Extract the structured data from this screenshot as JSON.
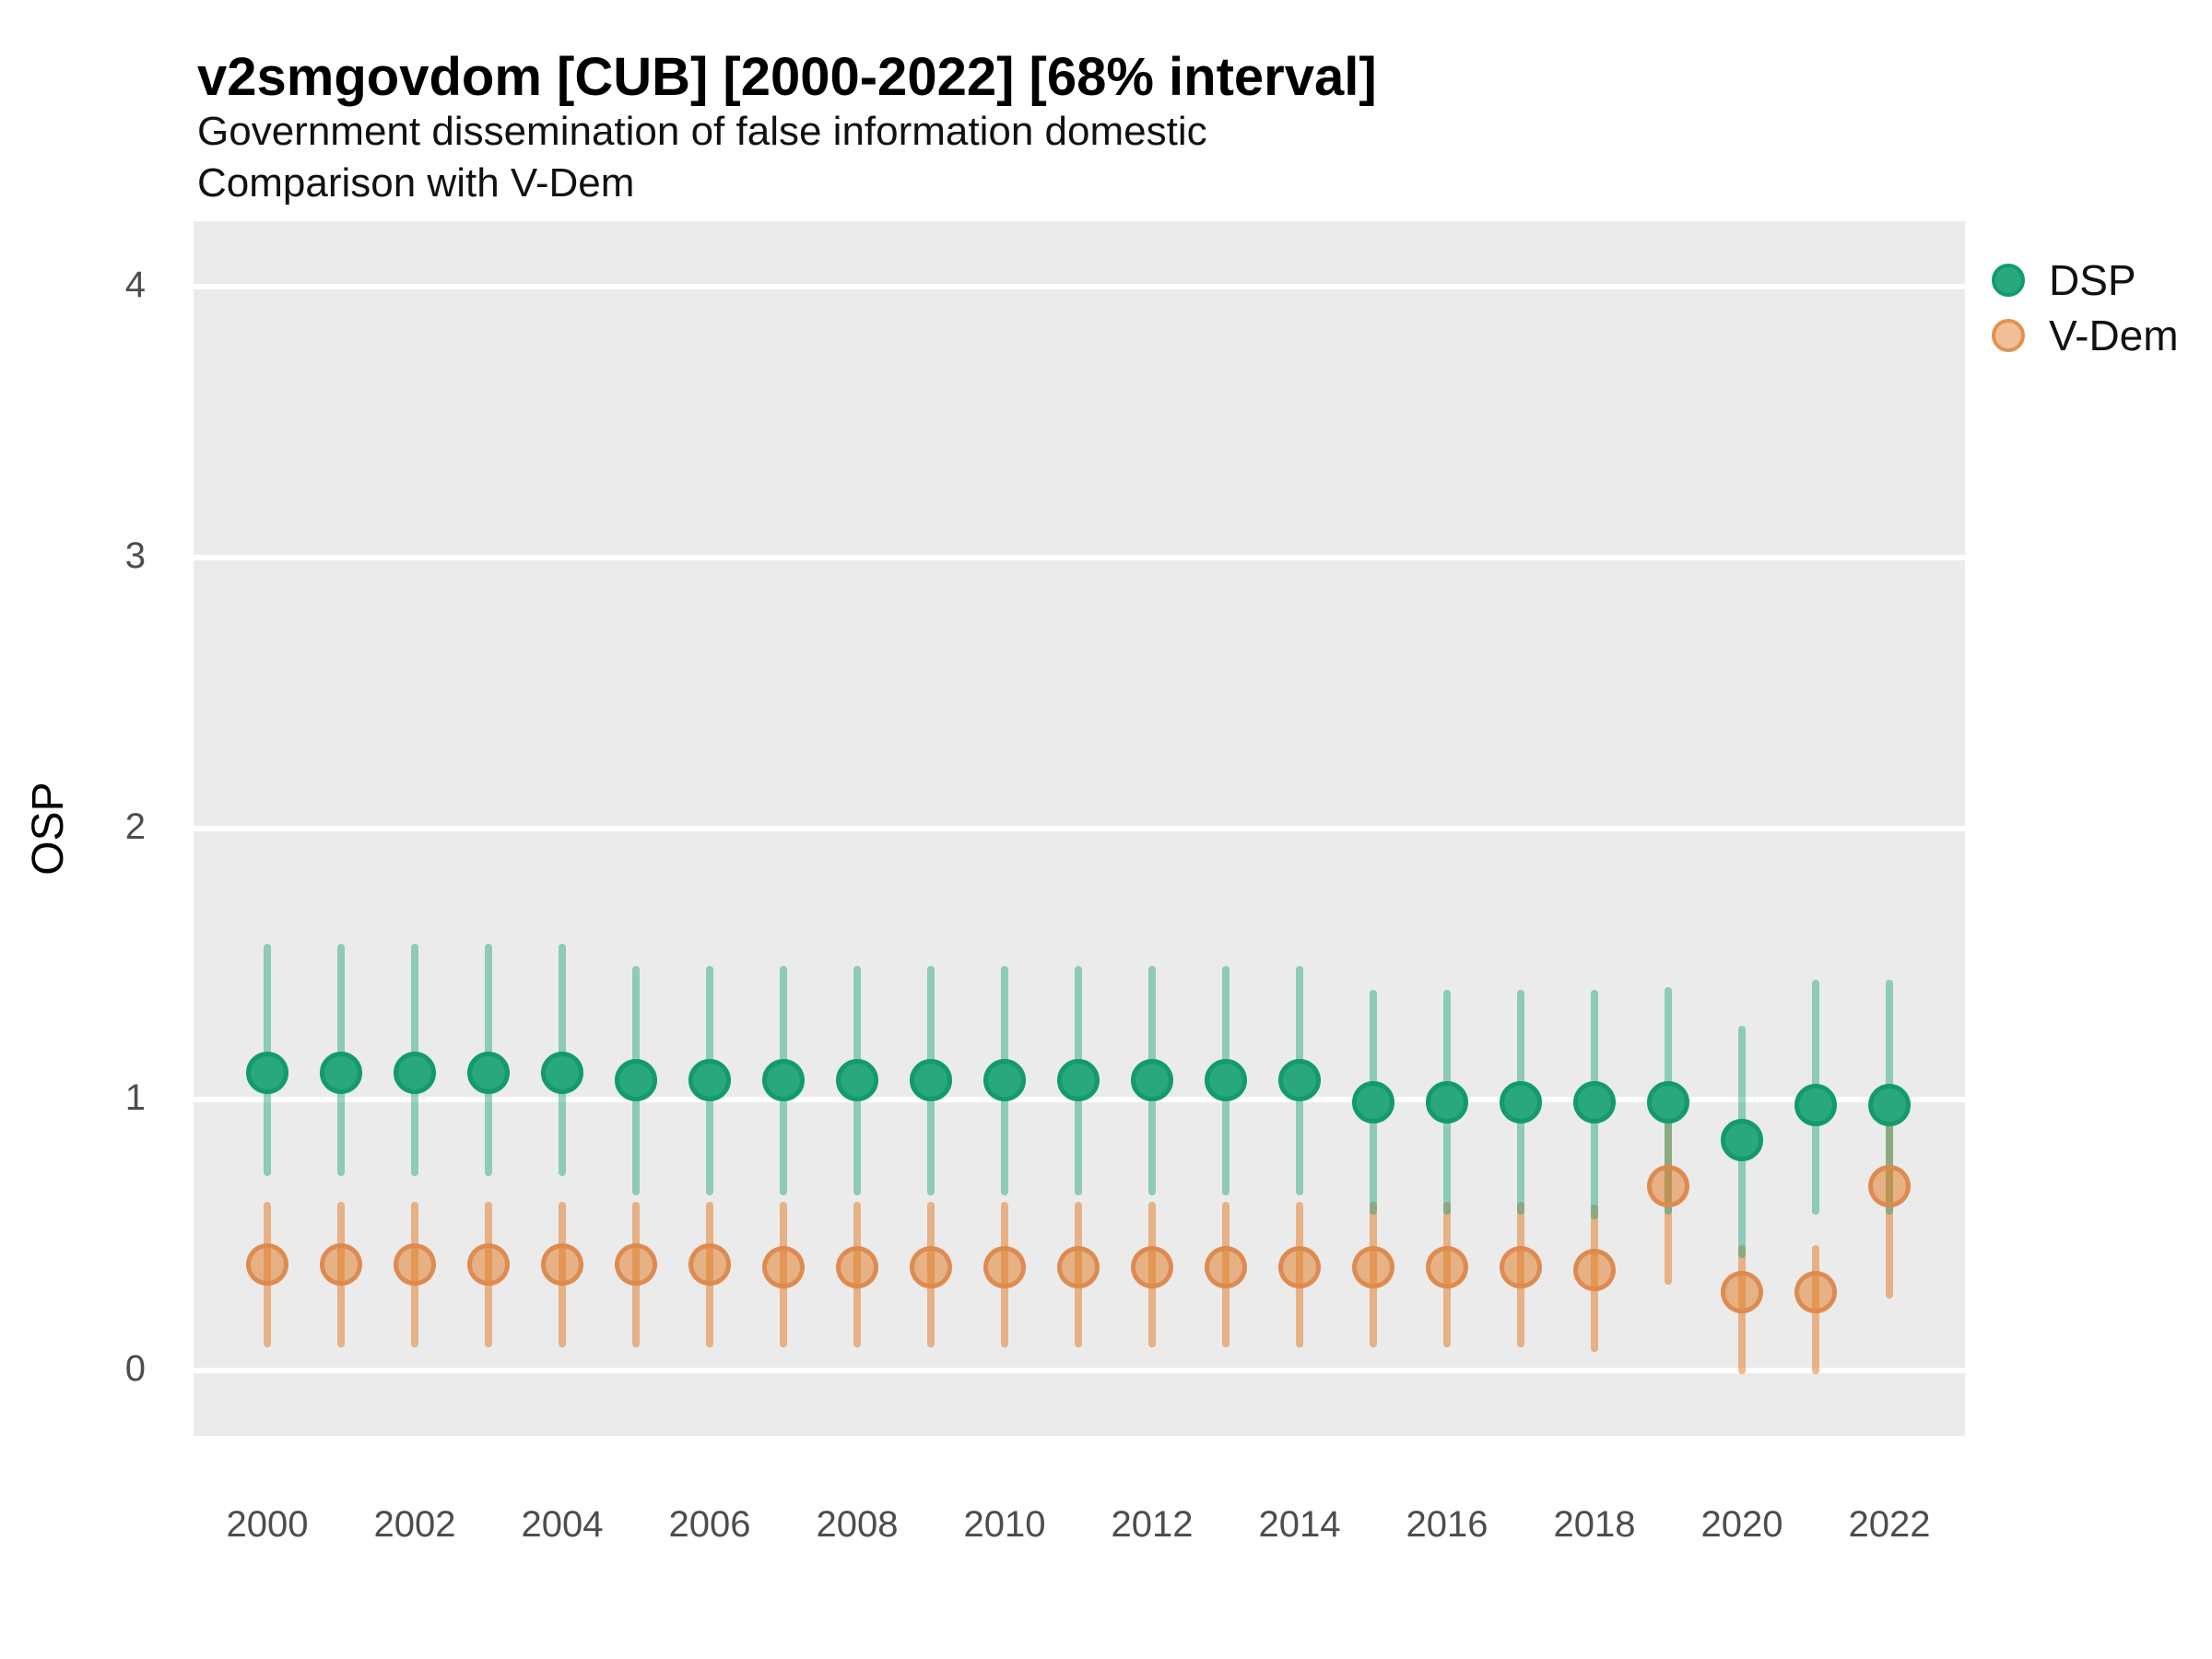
{
  "header": {
    "title": "v2smgovdom [CUB] [2000-2022] [68% interval]",
    "subtitle1": "Government dissemination of false information domestic",
    "subtitle2": "Comparison with V-Dem"
  },
  "y_axis": {
    "label": "OSP",
    "ticks": [
      0,
      1,
      2,
      3,
      4
    ]
  },
  "x_axis": {
    "ticks": [
      2000,
      2002,
      2004,
      2006,
      2008,
      2010,
      2012,
      2014,
      2016,
      2018,
      2020,
      2022
    ]
  },
  "legend": {
    "items": [
      {
        "label": "DSP",
        "fill": "#29a87d",
        "stroke": "#149a6c"
      },
      {
        "label": "V-Dem",
        "fill": "#f0be97",
        "stroke": "#e09254"
      }
    ]
  },
  "colors": {
    "panel_background": "#ebebeb",
    "gridline": "#ffffff",
    "dsp_line": "rgba(26,161,121,0.45)",
    "dsp_point_fill": "#29a87d",
    "dsp_point_stroke": "#139a6d",
    "vdem_line": "rgba(225,130,48,0.55)",
    "vdem_point_fill": "rgba(225,130,48,0.55)",
    "vdem_point_stroke": "rgba(221,137,78,0.95)"
  },
  "chart_data": {
    "type": "pointrange",
    "title": "v2smgovdom [CUB] [2000-2022] [68% interval]",
    "xlabel": "",
    "ylabel": "OSP",
    "interval": "68%",
    "xlim": [
      1999,
      2023
    ],
    "ylim": [
      -0.24,
      4.24
    ],
    "grid": "horizontal-major-only",
    "legend_position": "right",
    "series": [
      {
        "name": "DSP",
        "points": [
          {
            "year": 2000,
            "value": 1.1,
            "lo": 0.73,
            "hi": 1.56
          },
          {
            "year": 2001,
            "value": 1.1,
            "lo": 0.73,
            "hi": 1.56
          },
          {
            "year": 2002,
            "value": 1.1,
            "lo": 0.73,
            "hi": 1.56
          },
          {
            "year": 2003,
            "value": 1.1,
            "lo": 0.73,
            "hi": 1.56
          },
          {
            "year": 2004,
            "value": 1.1,
            "lo": 0.73,
            "hi": 1.56
          },
          {
            "year": 2005,
            "value": 1.07,
            "lo": 0.66,
            "hi": 1.48
          },
          {
            "year": 2006,
            "value": 1.07,
            "lo": 0.66,
            "hi": 1.48
          },
          {
            "year": 2007,
            "value": 1.07,
            "lo": 0.66,
            "hi": 1.48
          },
          {
            "year": 2008,
            "value": 1.07,
            "lo": 0.66,
            "hi": 1.48
          },
          {
            "year": 2009,
            "value": 1.07,
            "lo": 0.66,
            "hi": 1.48
          },
          {
            "year": 2010,
            "value": 1.07,
            "lo": 0.66,
            "hi": 1.48
          },
          {
            "year": 2011,
            "value": 1.07,
            "lo": 0.66,
            "hi": 1.48
          },
          {
            "year": 2012,
            "value": 1.07,
            "lo": 0.66,
            "hi": 1.48
          },
          {
            "year": 2013,
            "value": 1.07,
            "lo": 0.66,
            "hi": 1.48
          },
          {
            "year": 2014,
            "value": 1.07,
            "lo": 0.66,
            "hi": 1.48
          },
          {
            "year": 2015,
            "value": 0.99,
            "lo": 0.59,
            "hi": 1.39
          },
          {
            "year": 2016,
            "value": 0.99,
            "lo": 0.59,
            "hi": 1.39
          },
          {
            "year": 2017,
            "value": 0.99,
            "lo": 0.59,
            "hi": 1.39
          },
          {
            "year": 2018,
            "value": 0.99,
            "lo": 0.57,
            "hi": 1.39
          },
          {
            "year": 2019,
            "value": 0.99,
            "lo": 0.59,
            "hi": 1.4
          },
          {
            "year": 2020,
            "value": 0.85,
            "lo": 0.43,
            "hi": 1.26
          },
          {
            "year": 2021,
            "value": 0.98,
            "lo": 0.59,
            "hi": 1.43
          },
          {
            "year": 2022,
            "value": 0.98,
            "lo": 0.59,
            "hi": 1.43
          }
        ]
      },
      {
        "name": "V-Dem",
        "points": [
          {
            "year": 2000,
            "value": 0.39,
            "lo": 0.1,
            "hi": 0.61
          },
          {
            "year": 2001,
            "value": 0.39,
            "lo": 0.1,
            "hi": 0.61
          },
          {
            "year": 2002,
            "value": 0.39,
            "lo": 0.1,
            "hi": 0.61
          },
          {
            "year": 2003,
            "value": 0.39,
            "lo": 0.1,
            "hi": 0.61
          },
          {
            "year": 2004,
            "value": 0.39,
            "lo": 0.1,
            "hi": 0.61
          },
          {
            "year": 2005,
            "value": 0.39,
            "lo": 0.1,
            "hi": 0.61
          },
          {
            "year": 2006,
            "value": 0.39,
            "lo": 0.1,
            "hi": 0.61
          },
          {
            "year": 2007,
            "value": 0.38,
            "lo": 0.1,
            "hi": 0.61
          },
          {
            "year": 2008,
            "value": 0.38,
            "lo": 0.1,
            "hi": 0.61
          },
          {
            "year": 2009,
            "value": 0.38,
            "lo": 0.1,
            "hi": 0.61
          },
          {
            "year": 2010,
            "value": 0.38,
            "lo": 0.1,
            "hi": 0.61
          },
          {
            "year": 2011,
            "value": 0.38,
            "lo": 0.1,
            "hi": 0.61
          },
          {
            "year": 2012,
            "value": 0.38,
            "lo": 0.1,
            "hi": 0.61
          },
          {
            "year": 2013,
            "value": 0.38,
            "lo": 0.1,
            "hi": 0.61
          },
          {
            "year": 2014,
            "value": 0.38,
            "lo": 0.1,
            "hi": 0.61
          },
          {
            "year": 2015,
            "value": 0.38,
            "lo": 0.1,
            "hi": 0.61
          },
          {
            "year": 2016,
            "value": 0.38,
            "lo": 0.1,
            "hi": 0.61
          },
          {
            "year": 2017,
            "value": 0.38,
            "lo": 0.1,
            "hi": 0.61
          },
          {
            "year": 2018,
            "value": 0.37,
            "lo": 0.08,
            "hi": 0.6
          },
          {
            "year": 2019,
            "value": 0.68,
            "lo": 0.33,
            "hi": 0.95
          },
          {
            "year": 2020,
            "value": 0.29,
            "lo": 0.0,
            "hi": 0.45
          },
          {
            "year": 2021,
            "value": 0.29,
            "lo": 0.0,
            "hi": 0.45
          },
          {
            "year": 2022,
            "value": 0.68,
            "lo": 0.28,
            "hi": 0.94
          }
        ]
      }
    ]
  }
}
